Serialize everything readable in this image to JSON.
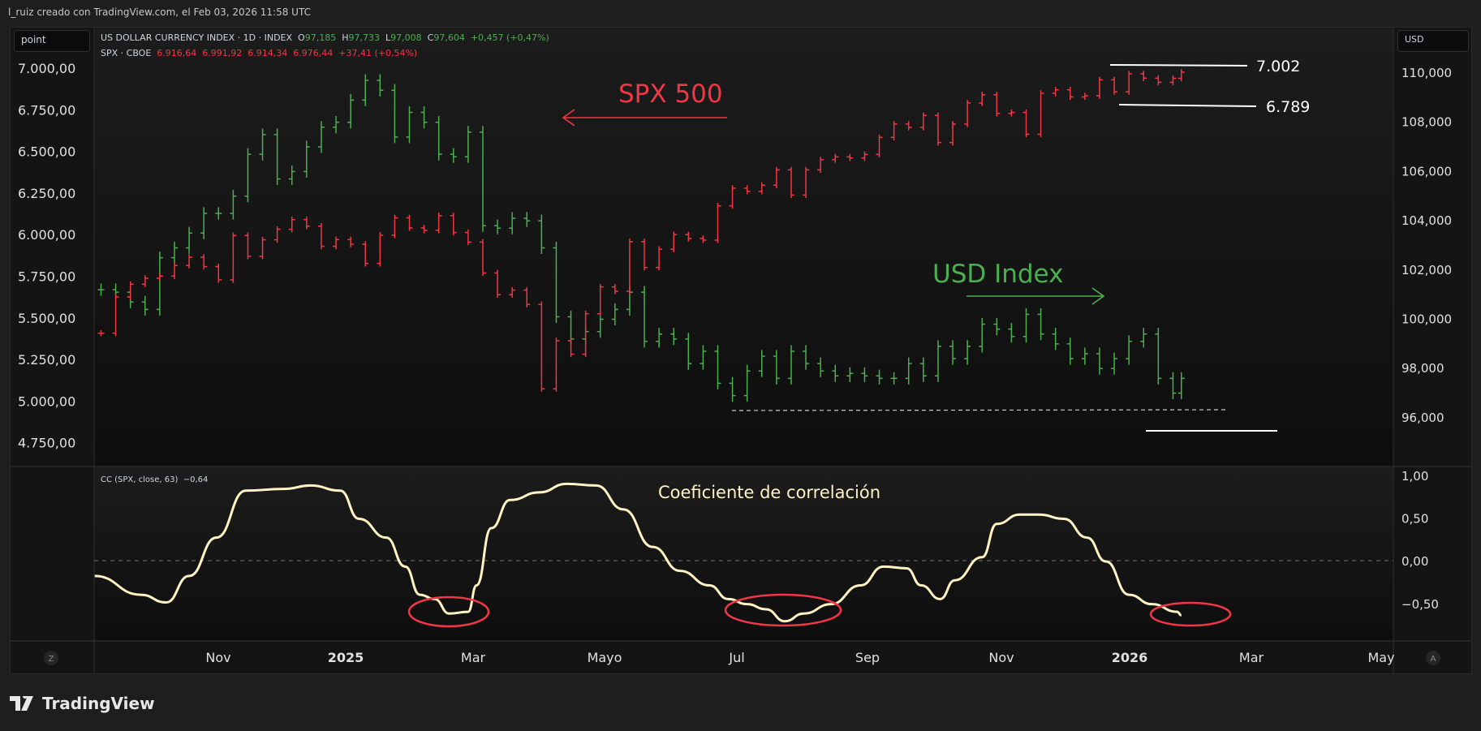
{
  "credit": "l_ruiz creado con TradingView.com, el Feb 03, 2026 11:58 UTC",
  "left_unit": "point",
  "right_unit": "USD",
  "legend": {
    "dxy": {
      "name": "US DOLLAR CURRENCY INDEX · 1D · INDEX",
      "o_label": "O",
      "o": "97,185",
      "h_label": "H",
      "h": "97,733",
      "l_label": "L",
      "l": "97,008",
      "c_label": "C",
      "c": "97,604",
      "change": "+0,457 (+0,47%)"
    },
    "spx": {
      "name": "SPX · CBOE",
      "o": "6.916,64",
      "h": "6.991,92",
      "l": "6.914,34",
      "c": "6.976,44",
      "change": "+37,41 (+0,54%)"
    },
    "cc": {
      "name": "CC (SPX, close, 63)",
      "value": "−0,64"
    }
  },
  "annotations": {
    "spx_label": "SPX 500",
    "usd_label": "USD Index",
    "cc_label": "Coeficiente de correlación",
    "level_high": "7.002",
    "level_low": "6.789"
  },
  "colors": {
    "up": "#4caf50",
    "spx": "#f23645",
    "cc": "#fff3c4",
    "annotation_red": "#f23645",
    "annotation_green": "#4caf50",
    "background": "#141414"
  },
  "buttons": {
    "left_scale": "Z",
    "right_scale": "A"
  },
  "logo_text": "TradingView",
  "chart_data": {
    "type": "ohlc",
    "x_ticks": [
      "Nov",
      "2025",
      "Mar",
      "Mayo",
      "Jul",
      "Sep",
      "Nov",
      "2026",
      "Mar",
      "May"
    ],
    "left_axis": {
      "unit": "point",
      "ticks": [
        "7.000,00",
        "6.750,00",
        "6.500,00",
        "6.250,00",
        "6.000,00",
        "5.750,00",
        "5.500,00",
        "5.250,00",
        "5.000,00",
        "4.750,00"
      ],
      "range": [
        4750,
        7000
      ]
    },
    "right_axis": {
      "unit": "USD",
      "ticks": [
        "110,000",
        "108,000",
        "106,000",
        "104,000",
        "102,000",
        "100,000",
        "98,000",
        "96,000"
      ],
      "range": [
        96,
        110
      ]
    },
    "cc_axis": {
      "ticks": [
        "1,00",
        "0,50",
        "0,00",
        "−0,50"
      ],
      "range": [
        -0.75,
        1.0
      ]
    },
    "dates": [
      "2024-09-06",
      "2024-09-13",
      "2024-09-20",
      "2024-09-27",
      "2024-10-04",
      "2024-10-11",
      "2024-10-18",
      "2024-10-25",
      "2024-11-01",
      "2024-11-08",
      "2024-11-15",
      "2024-11-22",
      "2024-11-29",
      "2024-12-06",
      "2024-12-13",
      "2024-12-20",
      "2024-12-27",
      "2025-01-03",
      "2025-01-10",
      "2025-01-17",
      "2025-01-24",
      "2025-01-31",
      "2025-02-07",
      "2025-02-14",
      "2025-02-21",
      "2025-02-28",
      "2025-03-07",
      "2025-03-14",
      "2025-03-21",
      "2025-03-28",
      "2025-04-04",
      "2025-04-11",
      "2025-04-18",
      "2025-04-25",
      "2025-05-02",
      "2025-05-09",
      "2025-05-16",
      "2025-05-23",
      "2025-05-30",
      "2025-06-06",
      "2025-06-13",
      "2025-06-20",
      "2025-06-27",
      "2025-07-04",
      "2025-07-11",
      "2025-07-18",
      "2025-07-25",
      "2025-08-01",
      "2025-08-08",
      "2025-08-15",
      "2025-08-22",
      "2025-08-29",
      "2025-09-05",
      "2025-09-12",
      "2025-09-19",
      "2025-09-26",
      "2025-10-03",
      "2025-10-10",
      "2025-10-17",
      "2025-10-24",
      "2025-10-31",
      "2025-11-07",
      "2025-11-14",
      "2025-11-21",
      "2025-11-28",
      "2025-12-05",
      "2025-12-12",
      "2025-12-19",
      "2025-12-26",
      "2026-01-02",
      "2026-01-09",
      "2026-01-16",
      "2026-01-23",
      "2026-01-30",
      "2026-02-03"
    ],
    "series": [
      {
        "name": "SPX",
        "axis": "left",
        "color": "#f23645",
        "values": [
          5408,
          5626,
          5702,
          5738,
          5751,
          5815,
          5864,
          5808,
          5728,
          5995,
          5870,
          5969,
          6032,
          6090,
          6051,
          5930,
          5970,
          5942,
          5827,
          5997,
          6101,
          6040,
          6026,
          6114,
          6013,
          5955,
          5770,
          5639,
          5667,
          5581,
          5074,
          5363,
          5282,
          5525,
          5686,
          5660,
          5958,
          5803,
          5912,
          6000,
          5977,
          5967,
          6173,
          6279,
          6260,
          6297,
          6389,
          6238,
          6389,
          6450,
          6467,
          6460,
          6482,
          6584,
          6664,
          6644,
          6716,
          6553,
          6664,
          6791,
          6840,
          6728,
          6734,
          6603,
          6849,
          6870,
          6827,
          6834,
          6930,
          6858,
          6966,
          6940,
          6915,
          6939,
          6976
        ]
      },
      {
        "name": "US DOLLAR CURRENCY INDEX",
        "axis": "right",
        "color": "#4caf50",
        "values": [
          101.2,
          101.1,
          100.7,
          100.4,
          102.5,
          102.9,
          103.5,
          104.3,
          104.3,
          105.0,
          106.7,
          107.5,
          105.7,
          106.0,
          107.0,
          107.8,
          108.0,
          108.9,
          109.7,
          109.3,
          107.4,
          108.4,
          108.0,
          106.7,
          106.6,
          107.6,
          103.8,
          103.7,
          104.1,
          104.0,
          102.9,
          100.1,
          99.2,
          99.5,
          100.0,
          100.4,
          101.1,
          99.1,
          99.4,
          99.2,
          98.2,
          98.7,
          97.4,
          96.9,
          97.9,
          98.5,
          97.6,
          98.7,
          98.2,
          97.9,
          97.7,
          97.8,
          97.7,
          97.6,
          97.6,
          98.2,
          97.7,
          98.9,
          98.4,
          98.9,
          99.8,
          99.6,
          99.3,
          100.2,
          99.4,
          99.0,
          98.4,
          98.6,
          98.0,
          98.4,
          99.1,
          99.4,
          97.6,
          97.0,
          97.6
        ]
      }
    ],
    "cc_series": {
      "name": "CC (SPX, close, 63)",
      "color": "#fff3c4",
      "points": [
        [
          "2024-09-03",
          -0.18
        ],
        [
          "2024-09-25",
          -0.4
        ],
        [
          "2024-10-07",
          -0.49
        ],
        [
          "2024-10-18",
          -0.18
        ],
        [
          "2024-10-31",
          0.27
        ],
        [
          "2024-11-14",
          0.82
        ],
        [
          "2024-12-02",
          0.84
        ],
        [
          "2024-12-15",
          0.88
        ],
        [
          "2024-12-29",
          0.82
        ],
        [
          "2025-01-07",
          0.49
        ],
        [
          "2025-01-20",
          0.27
        ],
        [
          "2025-01-29",
          -0.07
        ],
        [
          "2025-02-05",
          -0.4
        ],
        [
          "2025-02-12",
          -0.45
        ],
        [
          "2025-02-19",
          -0.62
        ],
        [
          "2025-02-28",
          -0.6
        ],
        [
          "2025-03-04",
          -0.29
        ],
        [
          "2025-03-11",
          0.38
        ],
        [
          "2025-03-20",
          0.71
        ],
        [
          "2025-04-03",
          0.8
        ],
        [
          "2025-04-16",
          0.9
        ],
        [
          "2025-04-30",
          0.88
        ],
        [
          "2025-05-13",
          0.6
        ],
        [
          "2025-05-27",
          0.16
        ],
        [
          "2025-06-09",
          -0.12
        ],
        [
          "2025-06-23",
          -0.29
        ],
        [
          "2025-07-02",
          -0.45
        ],
        [
          "2025-07-11",
          -0.51
        ],
        [
          "2025-07-20",
          -0.57
        ],
        [
          "2025-07-29",
          -0.71
        ],
        [
          "2025-08-07",
          -0.62
        ],
        [
          "2025-08-20",
          -0.51
        ],
        [
          "2025-09-03",
          -0.29
        ],
        [
          "2025-09-14",
          -0.07
        ],
        [
          "2025-09-25",
          -0.09
        ],
        [
          "2025-10-02",
          -0.29
        ],
        [
          "2025-10-11",
          -0.45
        ],
        [
          "2025-10-18",
          -0.23
        ],
        [
          "2025-10-31",
          0.04
        ],
        [
          "2025-11-07",
          0.43
        ],
        [
          "2025-11-18",
          0.54
        ],
        [
          "2025-11-27",
          0.54
        ],
        [
          "2025-12-09",
          0.49
        ],
        [
          "2025-12-20",
          0.27
        ],
        [
          "2025-12-29",
          -0.01
        ],
        [
          "2026-01-09",
          -0.4
        ],
        [
          "2026-01-20",
          -0.51
        ],
        [
          "2026-02-01",
          -0.6
        ],
        [
          "2026-02-03",
          -0.64
        ]
      ]
    },
    "levels": [
      {
        "label": "7.002",
        "value": 7002
      },
      {
        "label": "6.789",
        "value": 6789
      }
    ],
    "grid": false
  }
}
